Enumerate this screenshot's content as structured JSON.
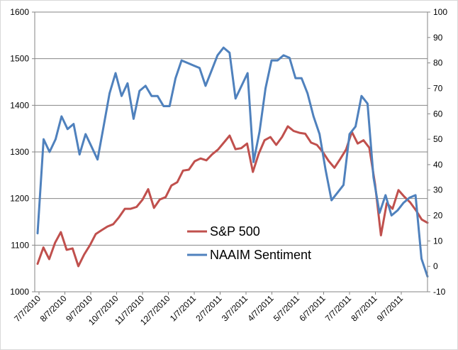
{
  "chart_data": {
    "type": "line",
    "title": "",
    "xlabel": "",
    "ylabel": "",
    "x_tick_labels": [
      "7/7/2010",
      "8/7/2010",
      "9/7/2010",
      "10/7/2010",
      "11/7/2010",
      "12/7/2010",
      "1/7/2011",
      "2/7/2011",
      "3/7/2011",
      "4/7/2011",
      "5/7/2011",
      "6/7/2011",
      "7/7/2011",
      "8/7/2011",
      "9/7/2011"
    ],
    "y_left_ticks": [
      1000,
      1100,
      1200,
      1300,
      1400,
      1500,
      1600
    ],
    "y_right_ticks": [
      -10,
      0,
      10,
      20,
      30,
      40,
      50,
      60,
      70,
      80,
      90,
      100
    ],
    "ylim_left": [
      1000,
      1600
    ],
    "ylim_right": [
      -10,
      100
    ],
    "grid": true,
    "legend_position": "center-bottom",
    "series": [
      {
        "name": "S&P 500",
        "axis": "left",
        "color": "#c0504d",
        "values": [
          1060,
          1095,
          1070,
          1105,
          1128,
          1090,
          1093,
          1055,
          1080,
          1100,
          1124,
          1132,
          1140,
          1145,
          1160,
          1178,
          1178,
          1182,
          1197,
          1220,
          1180,
          1198,
          1203,
          1228,
          1235,
          1260,
          1262,
          1280,
          1286,
          1282,
          1295,
          1305,
          1320,
          1335,
          1306,
          1308,
          1318,
          1257,
          1296,
          1325,
          1332,
          1315,
          1332,
          1355,
          1345,
          1341,
          1339,
          1320,
          1315,
          1300,
          1281,
          1266,
          1285,
          1305,
          1343,
          1318,
          1325,
          1309,
          1230,
          1121,
          1190,
          1178,
          1218,
          1204,
          1192,
          1175,
          1155,
          1148
        ]
      },
      {
        "name": "NAAIM Sentiment",
        "axis": "right",
        "color": "#4f81bd",
        "values": [
          13,
          50,
          45,
          50,
          59,
          54,
          56,
          44,
          52,
          47,
          42,
          55,
          68,
          76,
          67,
          72,
          58,
          69,
          71,
          67,
          67,
          63,
          63,
          74,
          81,
          80,
          79,
          78,
          71,
          77,
          83,
          86,
          84,
          66,
          71,
          76,
          41,
          53,
          70,
          81,
          81,
          83,
          82,
          74,
          74,
          68,
          59,
          52,
          38,
          26,
          29,
          32,
          52,
          55,
          67,
          64,
          35,
          21,
          28,
          20,
          22,
          25,
          27,
          28,
          3,
          -4
        ]
      }
    ]
  }
}
